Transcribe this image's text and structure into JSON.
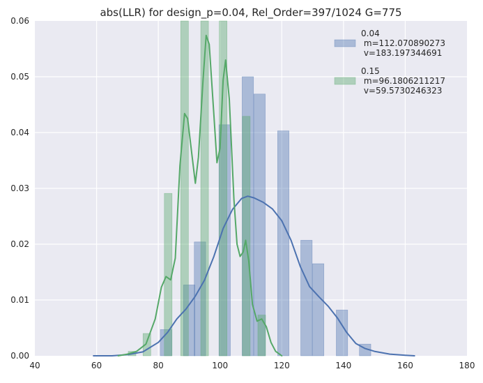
{
  "chart_data": {
    "type": "bar",
    "title": "abs(LLR) for design_p=0.04, Rel_Order=397/1024 G=775",
    "xlim": [
      40,
      180
    ],
    "ylim": [
      0,
      0.06
    ],
    "x_ticks": [
      "40",
      "60",
      "80",
      "100",
      "120",
      "140",
      "160",
      "180"
    ],
    "y_ticks": [
      "0.00",
      "0.01",
      "0.02",
      "0.03",
      "0.04",
      "0.05",
      "0.06"
    ],
    "grid": true,
    "legend_position": "top-right",
    "series": [
      {
        "name": "0.04",
        "legend_lines": [
          "0.04",
          " m=112.070890273",
          " v=183.197344691"
        ],
        "color": "#4c72b0",
        "bar_width": 3.7,
        "bars": [
          {
            "x": 82.5,
            "y": 0.0047
          },
          {
            "x": 90.0,
            "y": 0.0127
          },
          {
            "x": 93.5,
            "y": 0.0204
          },
          {
            "x": 101.5,
            "y": 0.0414
          },
          {
            "x": 109.0,
            "y": 0.05
          },
          {
            "x": 112.8,
            "y": 0.0469
          },
          {
            "x": 120.5,
            "y": 0.0403
          },
          {
            "x": 128.0,
            "y": 0.0207
          },
          {
            "x": 131.8,
            "y": 0.0165
          },
          {
            "x": 139.5,
            "y": 0.0082
          },
          {
            "x": 147.0,
            "y": 0.0021
          }
        ],
        "kde": [
          [
            59,
            0.0
          ],
          [
            65,
            0.0
          ],
          [
            70,
            0.0002
          ],
          [
            75,
            0.0007
          ],
          [
            80,
            0.0024
          ],
          [
            83,
            0.0042
          ],
          [
            86,
            0.0066
          ],
          [
            89,
            0.0084
          ],
          [
            92,
            0.0107
          ],
          [
            95,
            0.0136
          ],
          [
            98,
            0.0178
          ],
          [
            101,
            0.0228
          ],
          [
            104,
            0.0262
          ],
          [
            107,
            0.0282
          ],
          [
            109,
            0.0286
          ],
          [
            111,
            0.0283
          ],
          [
            114,
            0.0275
          ],
          [
            117,
            0.0263
          ],
          [
            120,
            0.0242
          ],
          [
            123,
            0.0207
          ],
          [
            126,
            0.016
          ],
          [
            129,
            0.0124
          ],
          [
            132,
            0.0106
          ],
          [
            135,
            0.0089
          ],
          [
            138,
            0.0068
          ],
          [
            141,
            0.0042
          ],
          [
            144,
            0.0022
          ],
          [
            147,
            0.0013
          ],
          [
            150,
            0.0008
          ],
          [
            155,
            0.0003
          ],
          [
            160,
            0.0001
          ],
          [
            163,
            0.0
          ]
        ]
      },
      {
        "name": "0.15",
        "legend_lines": [
          "0.15",
          " m=96.1806211217",
          " v=59.5730246323"
        ],
        "color": "#55a868",
        "bar_width": 2.5,
        "bars": [
          {
            "x": 71.5,
            "y": 0.0008
          },
          {
            "x": 76.3,
            "y": 0.004
          },
          {
            "x": 83.2,
            "y": 0.0291
          },
          {
            "x": 88.5,
            "y": 0.06
          },
          {
            "x": 95.0,
            "y": 0.06
          },
          {
            "x": 101.0,
            "y": 0.06
          },
          {
            "x": 108.5,
            "y": 0.0429
          },
          {
            "x": 113.5,
            "y": 0.0073
          }
        ],
        "kde": [
          [
            67,
            0.0
          ],
          [
            70,
            0.0003
          ],
          [
            73,
            0.0008
          ],
          [
            76,
            0.0021
          ],
          [
            79,
            0.0066
          ],
          [
            81,
            0.0123
          ],
          [
            82.5,
            0.0142
          ],
          [
            84,
            0.0136
          ],
          [
            85.5,
            0.0175
          ],
          [
            87,
            0.034
          ],
          [
            88.5,
            0.0434
          ],
          [
            89.5,
            0.0425
          ],
          [
            91,
            0.0355
          ],
          [
            92,
            0.0309
          ],
          [
            93,
            0.0356
          ],
          [
            94.5,
            0.0495
          ],
          [
            95.5,
            0.0574
          ],
          [
            96.5,
            0.0558
          ],
          [
            98,
            0.0432
          ],
          [
            99,
            0.0346
          ],
          [
            100,
            0.0372
          ],
          [
            101,
            0.0494
          ],
          [
            101.8,
            0.053
          ],
          [
            103,
            0.046
          ],
          [
            104.5,
            0.028
          ],
          [
            105.5,
            0.02
          ],
          [
            106.5,
            0.0178
          ],
          [
            107.5,
            0.0186
          ],
          [
            108.3,
            0.0207
          ],
          [
            109.3,
            0.017
          ],
          [
            110.5,
            0.0092
          ],
          [
            112,
            0.0062
          ],
          [
            113.5,
            0.0066
          ],
          [
            115,
            0.0052
          ],
          [
            116.5,
            0.0024
          ],
          [
            118,
            0.0008
          ],
          [
            120,
            0.0
          ]
        ]
      }
    ]
  }
}
